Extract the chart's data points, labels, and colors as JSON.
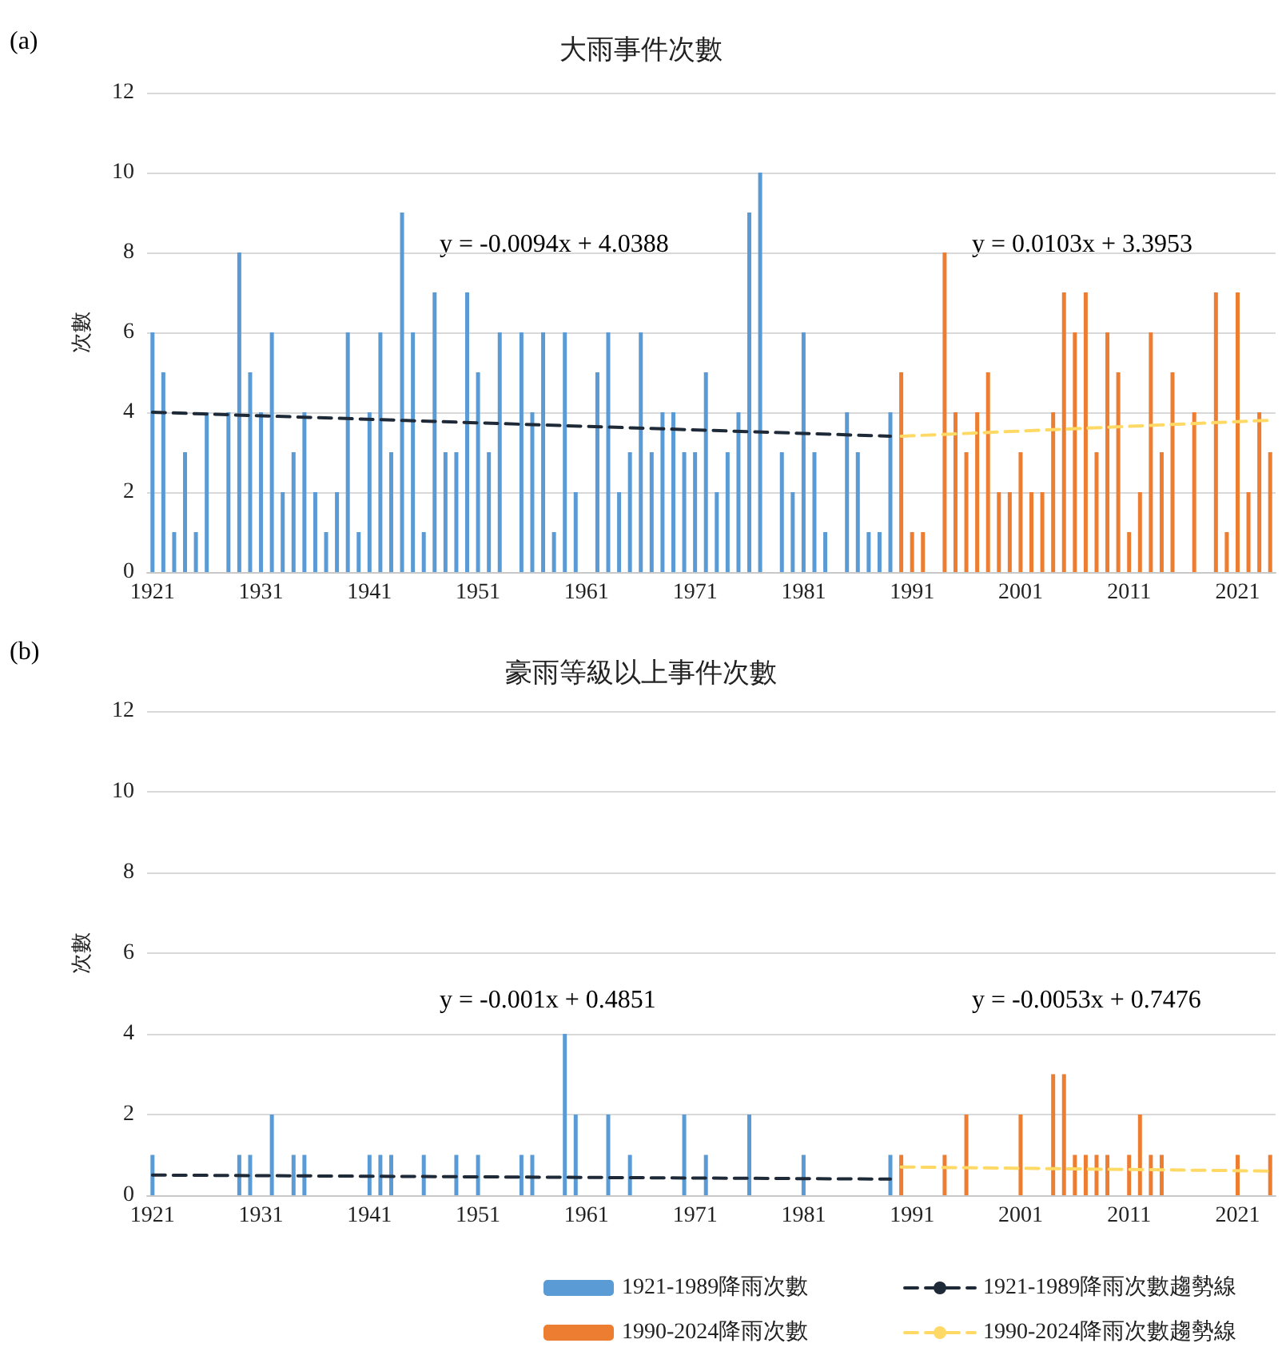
{
  "chart_data": [
    {
      "type": "bar",
      "title": "大雨事件次數",
      "ylabel": "次數",
      "ylim": [
        0,
        12
      ],
      "yticks": [
        0,
        2,
        4,
        6,
        8,
        10,
        12
      ],
      "grid": "y",
      "legend": false,
      "annotations": [
        "(a)",
        "y = -0.0094x + 4.0388",
        "y = 0.0103x + 3.3953"
      ],
      "categories": [
        "1921",
        null,
        null,
        null,
        null,
        null,
        null,
        null,
        null,
        null,
        "1931",
        null,
        null,
        null,
        null,
        null,
        null,
        null,
        null,
        null,
        "1941",
        null,
        null,
        null,
        null,
        null,
        null,
        null,
        null,
        null,
        "1951",
        null,
        null,
        null,
        null,
        null,
        null,
        null,
        null,
        null,
        "1961",
        null,
        null,
        null,
        null,
        null,
        null,
        null,
        null,
        null,
        "1971",
        null,
        null,
        null,
        null,
        null,
        null,
        null,
        null,
        null,
        "1981",
        null,
        null,
        null,
        null,
        null,
        null,
        null,
        null,
        null,
        "1991",
        null,
        null,
        null,
        null,
        null,
        null,
        null,
        null,
        null,
        "2001",
        null,
        null,
        null,
        null,
        null,
        null,
        null,
        null,
        null,
        "2011",
        null,
        null,
        null,
        null,
        null,
        null,
        null,
        null,
        null,
        "2021",
        null,
        null,
        null
      ],
      "series": [
        {
          "color": "#5b9bd5",
          "values": [
            6,
            5,
            1,
            3,
            1,
            4,
            0,
            4,
            8,
            5,
            4,
            6,
            2,
            3,
            4,
            2,
            1,
            2,
            6,
            1,
            4,
            6,
            3,
            9,
            6,
            1,
            7,
            3,
            3,
            7,
            5,
            3,
            6,
            0,
            6,
            4,
            6,
            1,
            6,
            2,
            0,
            5,
            6,
            2,
            3,
            6,
            3,
            4,
            4,
            3,
            3,
            5,
            2,
            3,
            4,
            9,
            10,
            0,
            3,
            2,
            6,
            3,
            1,
            0,
            4,
            3,
            1,
            1,
            4,
            null,
            null,
            null,
            null,
            null,
            null,
            null,
            null,
            null,
            null,
            null,
            null,
            null,
            null,
            null,
            null,
            null,
            null,
            null,
            null,
            null,
            null,
            null,
            null,
            null,
            null,
            null,
            null,
            null,
            null,
            null,
            null,
            null,
            null,
            null
          ]
        },
        {
          "color": "#ed7d31",
          "values": [
            null,
            null,
            null,
            null,
            null,
            null,
            null,
            null,
            null,
            null,
            null,
            null,
            null,
            null,
            null,
            null,
            null,
            null,
            null,
            null,
            null,
            null,
            null,
            null,
            null,
            null,
            null,
            null,
            null,
            null,
            null,
            null,
            null,
            null,
            null,
            null,
            null,
            null,
            null,
            null,
            null,
            null,
            null,
            null,
            null,
            null,
            null,
            null,
            null,
            null,
            null,
            null,
            null,
            null,
            null,
            null,
            null,
            null,
            null,
            null,
            null,
            null,
            null,
            null,
            null,
            null,
            null,
            null,
            null,
            5,
            1,
            1,
            0,
            8,
            4,
            3,
            4,
            5,
            2,
            2,
            3,
            2,
            2,
            4,
            7,
            6,
            7,
            3,
            6,
            5,
            1,
            2,
            6,
            3,
            5,
            0,
            4,
            0,
            7,
            1,
            7,
            2,
            4,
            3
          ]
        },
        {
          "type": "line",
          "color": "#1f2a38",
          "line_style": "dashed",
          "values": [
            4.0,
            null,
            null,
            null,
            null,
            null,
            null,
            null,
            null,
            null,
            null,
            null,
            null,
            null,
            null,
            null,
            null,
            null,
            null,
            null,
            null,
            null,
            null,
            null,
            null,
            null,
            null,
            null,
            null,
            null,
            null,
            null,
            null,
            null,
            null,
            null,
            null,
            null,
            null,
            null,
            null,
            null,
            null,
            null,
            null,
            null,
            null,
            null,
            null,
            null,
            null,
            null,
            null,
            null,
            null,
            null,
            null,
            null,
            null,
            null,
            null,
            null,
            null,
            null,
            null,
            null,
            null,
            null,
            3.4,
            null,
            null,
            null,
            null,
            null,
            null,
            null,
            null,
            null,
            null,
            null,
            null,
            null,
            null,
            null,
            null,
            null,
            null,
            null,
            null,
            null,
            null,
            null,
            null,
            null,
            null,
            null,
            null,
            null,
            null,
            null,
            null,
            null,
            null,
            null
          ]
        },
        {
          "type": "line",
          "color": "#ffd966",
          "line_style": "dashed",
          "values": [
            null,
            null,
            null,
            null,
            null,
            null,
            null,
            null,
            null,
            null,
            null,
            null,
            null,
            null,
            null,
            null,
            null,
            null,
            null,
            null,
            null,
            null,
            null,
            null,
            null,
            null,
            null,
            null,
            null,
            null,
            null,
            null,
            null,
            null,
            null,
            null,
            null,
            null,
            null,
            null,
            null,
            null,
            null,
            null,
            null,
            null,
            null,
            null,
            null,
            null,
            null,
            null,
            null,
            null,
            null,
            null,
            null,
            null,
            null,
            null,
            null,
            null,
            null,
            null,
            null,
            null,
            null,
            null,
            null,
            3.4,
            null,
            null,
            null,
            null,
            null,
            null,
            null,
            null,
            null,
            null,
            null,
            null,
            null,
            null,
            null,
            null,
            null,
            null,
            null,
            null,
            null,
            null,
            null,
            null,
            null,
            null,
            null,
            null,
            null,
            null,
            null,
            null,
            null,
            3.8
          ]
        }
      ]
    },
    {
      "type": "bar",
      "title": "豪雨等級以上事件次數",
      "ylabel": "次數",
      "ylim": [
        0,
        12
      ],
      "yticks": [
        0,
        2,
        4,
        6,
        8,
        10,
        12
      ],
      "grid": "y",
      "legend": "bottom right",
      "annotations": [
        "(b)",
        "y = -0.001x + 0.4851",
        "y = -0.0053x + 0.7476"
      ],
      "categories": [
        "1921",
        null,
        null,
        null,
        null,
        null,
        null,
        null,
        null,
        null,
        "1931",
        null,
        null,
        null,
        null,
        null,
        null,
        null,
        null,
        null,
        "1941",
        null,
        null,
        null,
        null,
        null,
        null,
        null,
        null,
        null,
        "1951",
        null,
        null,
        null,
        null,
        null,
        null,
        null,
        null,
        null,
        "1961",
        null,
        null,
        null,
        null,
        null,
        null,
        null,
        null,
        null,
        "1971",
        null,
        null,
        null,
        null,
        null,
        null,
        null,
        null,
        null,
        "1981",
        null,
        null,
        null,
        null,
        null,
        null,
        null,
        null,
        null,
        "1991",
        null,
        null,
        null,
        null,
        null,
        null,
        null,
        null,
        null,
        "2001",
        null,
        null,
        null,
        null,
        null,
        null,
        null,
        null,
        null,
        "2011",
        null,
        null,
        null,
        null,
        null,
        null,
        null,
        null,
        null,
        "2021",
        null,
        null,
        null
      ],
      "series": [
        {
          "name": "1921-1989降雨次數",
          "color": "#5b9bd5",
          "values": [
            1,
            0,
            0,
            0,
            0,
            0,
            0,
            0,
            1,
            1,
            0,
            2,
            0,
            1,
            1,
            0,
            0,
            0,
            0,
            0,
            1,
            1,
            1,
            0,
            0,
            1,
            0,
            0,
            1,
            0,
            1,
            0,
            0,
            0,
            1,
            1,
            0,
            0,
            4,
            2,
            0,
            0,
            2,
            0,
            1,
            0,
            0,
            0,
            0,
            2,
            0,
            1,
            0,
            0,
            0,
            2,
            0,
            0,
            0,
            0,
            1,
            0,
            0,
            0,
            0,
            0,
            0,
            0,
            1,
            null,
            null,
            null,
            null,
            null,
            null,
            null,
            null,
            null,
            null,
            null,
            null,
            null,
            null,
            null,
            null,
            null,
            null,
            null,
            null,
            null,
            null,
            null,
            null,
            null,
            null,
            null,
            null,
            null,
            null,
            null,
            null,
            null,
            null,
            null
          ]
        },
        {
          "name": "1990-2024降雨次數",
          "color": "#ed7d31",
          "values": [
            null,
            null,
            null,
            null,
            null,
            null,
            null,
            null,
            null,
            null,
            null,
            null,
            null,
            null,
            null,
            null,
            null,
            null,
            null,
            null,
            null,
            null,
            null,
            null,
            null,
            null,
            null,
            null,
            null,
            null,
            null,
            null,
            null,
            null,
            null,
            null,
            null,
            null,
            null,
            null,
            null,
            null,
            null,
            null,
            null,
            null,
            null,
            null,
            null,
            null,
            null,
            null,
            null,
            null,
            null,
            null,
            null,
            null,
            null,
            null,
            null,
            null,
            null,
            null,
            null,
            null,
            null,
            null,
            null,
            1,
            0,
            0,
            0,
            1,
            0,
            2,
            0,
            0,
            0,
            0,
            2,
            0,
            0,
            3,
            3,
            1,
            1,
            1,
            1,
            0,
            1,
            2,
            1,
            1,
            0,
            0,
            0,
            0,
            0,
            0,
            1,
            0,
            0,
            1
          ]
        },
        {
          "type": "line",
          "name": "1921-1989降雨次數趨勢線",
          "color": "#1f2a38",
          "line_style": "dashed",
          "values": [
            0.5,
            null,
            null,
            null,
            null,
            null,
            null,
            null,
            null,
            null,
            null,
            null,
            null,
            null,
            null,
            null,
            null,
            null,
            null,
            null,
            null,
            null,
            null,
            null,
            null,
            null,
            null,
            null,
            null,
            null,
            null,
            null,
            null,
            null,
            null,
            null,
            null,
            null,
            null,
            null,
            null,
            null,
            null,
            null,
            null,
            null,
            null,
            null,
            null,
            null,
            null,
            null,
            null,
            null,
            null,
            null,
            null,
            null,
            null,
            null,
            null,
            null,
            null,
            null,
            null,
            null,
            null,
            null,
            0.4,
            null,
            null,
            null,
            null,
            null,
            null,
            null,
            null,
            null,
            null,
            null,
            null,
            null,
            null,
            null,
            null,
            null,
            null,
            null,
            null,
            null,
            null,
            null,
            null,
            null,
            null,
            null,
            null,
            null,
            null,
            null,
            null,
            null,
            null,
            null
          ]
        },
        {
          "type": "line",
          "name": "1990-2024降雨次數趨勢線",
          "color": "#ffd966",
          "line_style": "dashed",
          "values": [
            null,
            null,
            null,
            null,
            null,
            null,
            null,
            null,
            null,
            null,
            null,
            null,
            null,
            null,
            null,
            null,
            null,
            null,
            null,
            null,
            null,
            null,
            null,
            null,
            null,
            null,
            null,
            null,
            null,
            null,
            null,
            null,
            null,
            null,
            null,
            null,
            null,
            null,
            null,
            null,
            null,
            null,
            null,
            null,
            null,
            null,
            null,
            null,
            null,
            null,
            null,
            null,
            null,
            null,
            null,
            null,
            null,
            null,
            null,
            null,
            null,
            null,
            null,
            null,
            null,
            null,
            null,
            null,
            null,
            0.7,
            null,
            null,
            null,
            null,
            null,
            null,
            null,
            null,
            null,
            null,
            null,
            null,
            null,
            null,
            null,
            null,
            null,
            null,
            null,
            null,
            null,
            null,
            null,
            null,
            null,
            null,
            null,
            null,
            null,
            null,
            null,
            null,
            null,
            0.6
          ]
        }
      ]
    }
  ]
}
